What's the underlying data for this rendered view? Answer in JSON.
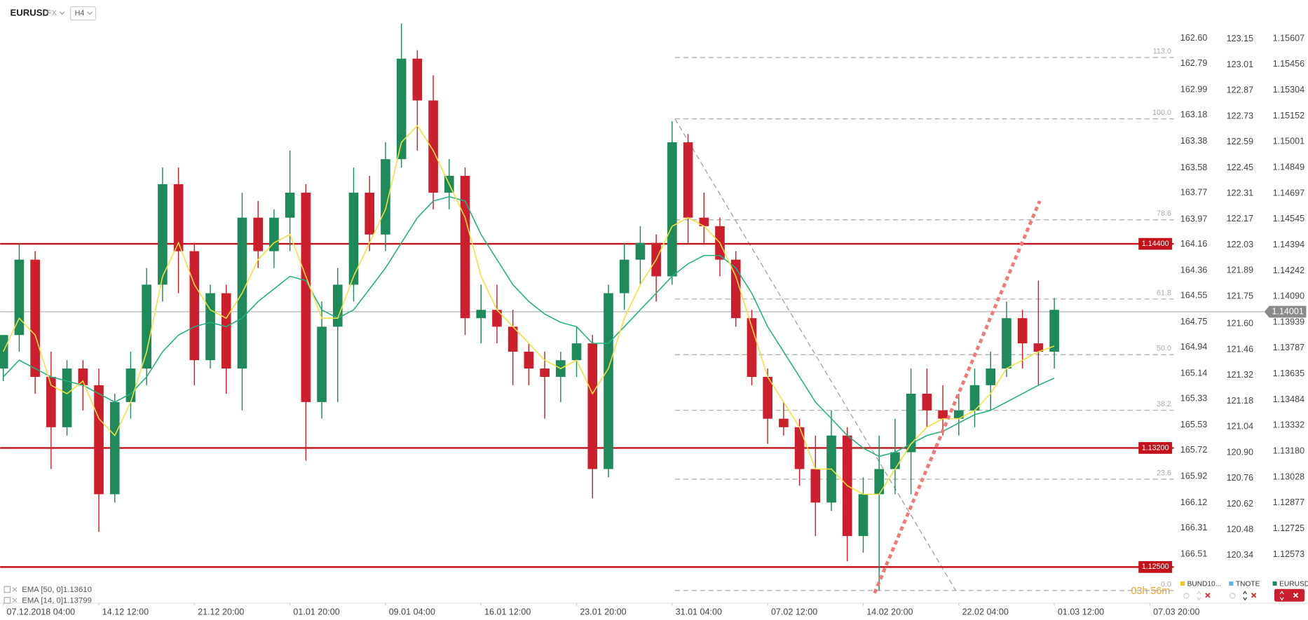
{
  "toolbar": {
    "symbol": "EURUSD",
    "market": "FX",
    "interval": "H4"
  },
  "chart_data": {
    "type": "candlestick",
    "xlim": [
      -0.2,
      73.5
    ],
    "xticks": [
      {
        "value": 0,
        "label": "07.12.2018 04:00"
      },
      {
        "value": 6,
        "label": "14.12 12:00"
      },
      {
        "value": 12,
        "label": "21.12 20:00"
      },
      {
        "value": 18,
        "label": "01.01 20:00"
      },
      {
        "value": 24,
        "label": "09.01 04:00"
      },
      {
        "value": 30,
        "label": "16.01 12:00"
      },
      {
        "value": 36,
        "label": "23.01 20:00"
      },
      {
        "value": 42,
        "label": "31.01 04:00"
      },
      {
        "value": 48,
        "label": "07.02 12:00"
      },
      {
        "value": 54,
        "label": "14.02 20:00"
      },
      {
        "value": 60,
        "label": "22.02 04:00"
      },
      {
        "value": 66,
        "label": "01.03 12:00"
      },
      {
        "value": 72,
        "label": "07.03 20:00"
      }
    ],
    "ylim": [
      1.12287,
      1.15755
    ],
    "yticks": [
      1.15607,
      1.15456,
      1.15304,
      1.15152,
      1.15001,
      1.14849,
      1.14697,
      1.14545,
      1.14394,
      1.14242,
      {
        "value": 1.1409,
        "label": "1.14090"
      },
      1.13939,
      1.13787,
      1.13635,
      1.13484,
      1.13332,
      {
        "value": 1.1318,
        "label": "1.13180"
      },
      1.13028,
      1.12877,
      1.12725,
      1.12573
    ],
    "y2lim": [
      166.88,
      162.41
    ],
    "y2ticks": [
      {
        "value": 162.6,
        "label": "162.60"
      },
      162.79,
      162.99,
      163.18,
      163.38,
      163.58,
      163.77,
      163.97,
      164.16,
      164.36,
      164.55,
      164.75,
      164.94,
      165.14,
      165.33,
      165.53,
      165.72,
      165.92,
      166.12,
      166.31,
      166.51
    ],
    "y3lim": [
      120.08,
      123.29
    ],
    "y3ticks": [
      123.15,
      123.01,
      122.87,
      122.73,
      122.59,
      122.45,
      122.31,
      122.17,
      122.03,
      121.89,
      121.75,
      {
        "value": 121.6,
        "label": "121.60"
      },
      121.46,
      121.32,
      121.18,
      121.04,
      {
        "value": 120.9,
        "label": "120.90"
      },
      120.76,
      120.62,
      120.48,
      120.34
    ],
    "up_color": "#1e8a5c",
    "down_color": "#cc1f2d",
    "open": [
      1.13667,
      1.13864,
      1.14307,
      1.13618,
      1.13322,
      1.13667,
      1.13569,
      1.12928,
      1.1347,
      1.13667,
      1.1416,
      1.14751,
      1.14357,
      1.13716,
      1.1411,
      1.13667,
      1.14554,
      1.14357,
      1.14554,
      1.14701,
      1.1347,
      1.13913,
      1.1416,
      1.14701,
      1.14455,
      1.14898,
      1.15489,
      1.15243,
      1.14701,
      1.148,
      1.13963,
      1.14012,
      1.13913,
      1.13766,
      1.13667,
      1.13618,
      1.13716,
      1.13815,
      1.13076,
      1.1411,
      1.14307,
      1.14406,
      1.14209,
      1.14997,
      1.14554,
      1.14504,
      1.14307,
      1.13963,
      1.13618,
      1.13372,
      1.13322,
      1.13076,
      1.12879,
      1.13273,
      1.12682,
      1.12928,
      1.13076,
      1.13175,
      1.13519,
      1.13421,
      1.13372,
      1.13421,
      1.13569,
      1.13667,
      1.13963,
      1.13815,
      1.13766
    ],
    "high": [
      1.13864,
      1.14406,
      1.14357,
      1.13766,
      1.13716,
      1.13716,
      1.13667,
      1.13519,
      1.13766,
      1.14258,
      1.14849,
      1.14849,
      1.14406,
      1.1416,
      1.1416,
      1.14701,
      1.14652,
      1.14603,
      1.14948,
      1.14751,
      1.14061,
      1.14258,
      1.14849,
      1.148,
      1.14997,
      1.15696,
      1.15539,
      1.15391,
      1.14898,
      1.14849,
      1.1416,
      1.1416,
      1.14012,
      1.13815,
      1.13766,
      1.13766,
      1.13913,
      1.13864,
      1.1416,
      1.14406,
      1.14504,
      1.14455,
      1.1512,
      1.15046,
      1.14701,
      1.14554,
      1.14357,
      1.14012,
      1.13667,
      1.1347,
      1.13372,
      1.13273,
      1.13421,
      1.13322,
      1.13027,
      1.13273,
      1.13372,
      1.13667,
      1.13667,
      1.13569,
      1.13519,
      1.13667,
      1.13766,
      1.14061,
      1.14012,
      1.14184,
      1.14081
    ],
    "low": [
      1.13593,
      1.13766,
      1.13519,
      1.13076,
      1.13273,
      1.13421,
      1.12707,
      1.12879,
      1.13372,
      1.13569,
      1.14061,
      1.1411,
      1.13569,
      1.13667,
      1.13519,
      1.13421,
      1.14258,
      1.14258,
      1.14357,
      1.13125,
      1.13372,
      1.1347,
      1.14061,
      1.14357,
      1.14357,
      1.14849,
      1.14948,
      1.14603,
      1.14603,
      1.13864,
      1.13815,
      1.13815,
      1.13569,
      1.13569,
      1.13372,
      1.1347,
      1.13618,
      1.12904,
      1.13027,
      1.14012,
      1.1416,
      1.14061,
      1.1416,
      1.14406,
      1.14406,
      1.14209,
      1.13913,
      1.13569,
      1.13224,
      1.13273,
      1.12978,
      1.12682,
      1.1283,
      1.12534,
      1.12584,
      1.12362,
      1.12928,
      1.12928,
      1.13322,
      1.13273,
      1.13273,
      1.13322,
      1.13421,
      1.13618,
      1.13667,
      1.13569,
      1.13667
    ],
    "close": [
      1.13864,
      1.14307,
      1.13618,
      1.13322,
      1.13667,
      1.13569,
      1.12928,
      1.1347,
      1.13667,
      1.1416,
      1.14751,
      1.14357,
      1.13716,
      1.1411,
      1.13667,
      1.14554,
      1.14357,
      1.14554,
      1.14701,
      1.1347,
      1.13913,
      1.1416,
      1.14701,
      1.14455,
      1.14898,
      1.15489,
      1.15243,
      1.14701,
      1.148,
      1.13963,
      1.14012,
      1.13913,
      1.13766,
      1.13667,
      1.13618,
      1.13716,
      1.13815,
      1.13076,
      1.1411,
      1.14307,
      1.14406,
      1.14209,
      1.14997,
      1.14554,
      1.14504,
      1.14307,
      1.13963,
      1.13618,
      1.13372,
      1.13322,
      1.13076,
      1.12879,
      1.13273,
      1.12682,
      1.12928,
      1.13076,
      1.13175,
      1.13519,
      1.13421,
      1.13372,
      1.13421,
      1.13569,
      1.13667,
      1.13963,
      1.13815,
      1.13766,
      1.14012
    ],
    "series": [
      {
        "name": "EMA [50, 0]",
        "color": "#22b07f",
        "last_label": "1.13610",
        "values": [
          1.13618,
          1.13716,
          1.13667,
          1.13618,
          1.13593,
          1.13569,
          1.13519,
          1.1347,
          1.13519,
          1.13618,
          1.13766,
          1.13864,
          1.13913,
          1.13938,
          1.13913,
          1.13963,
          1.14061,
          1.14135,
          1.14209,
          1.14184,
          1.14012,
          1.13963,
          1.14012,
          1.14135,
          1.14258,
          1.14406,
          1.14554,
          1.14652,
          1.14677,
          1.14652,
          1.14455,
          1.14307,
          1.1416,
          1.14061,
          1.13987,
          1.13938,
          1.13913,
          1.13815,
          1.13815,
          1.13913,
          1.14012,
          1.1411,
          1.14209,
          1.14283,
          1.14332,
          1.14332,
          1.14258,
          1.1411,
          1.13913,
          1.13766,
          1.13618,
          1.1347,
          1.13372,
          1.13273,
          1.13199,
          1.1315,
          1.13175,
          1.13224,
          1.13273,
          1.13298,
          1.13347,
          1.13396,
          1.13421,
          1.1347,
          1.13519,
          1.13569,
          1.1361
        ]
      },
      {
        "name": "EMA [14, 0]",
        "color": "#f3e03c",
        "last_label": "1.13799",
        "values": [
          1.13766,
          1.13963,
          1.13864,
          1.13569,
          1.13519,
          1.13593,
          1.13372,
          1.13273,
          1.1347,
          1.13766,
          1.14209,
          1.14406,
          1.1416,
          1.14012,
          1.13963,
          1.1411,
          1.14307,
          1.14406,
          1.14455,
          1.14209,
          1.13963,
          1.13963,
          1.14209,
          1.14406,
          1.14603,
          1.14997,
          1.15095,
          1.14948,
          1.14751,
          1.14554,
          1.14209,
          1.14012,
          1.13913,
          1.13815,
          1.13716,
          1.13667,
          1.13716,
          1.13519,
          1.13667,
          1.13963,
          1.1416,
          1.14307,
          1.14504,
          1.14554,
          1.14504,
          1.14406,
          1.14209,
          1.13913,
          1.13618,
          1.1347,
          1.13322,
          1.13076,
          1.13076,
          1.12978,
          1.12928,
          1.12928,
          1.13076,
          1.13224,
          1.13322,
          1.13372,
          1.13372,
          1.13421,
          1.13519,
          1.13667,
          1.13716,
          1.13766,
          1.13799
        ]
      }
    ],
    "levels": [
      {
        "value": 1.144,
        "label": "1.14400"
      },
      {
        "value": 1.132,
        "label": "1.13200"
      },
      {
        "value": 1.125,
        "label": "1.12500"
      }
    ],
    "level_color": "#c4121a",
    "current": {
      "value": 1.14001,
      "label": "1.14001"
    },
    "fibonacci": {
      "from": [
        42.18,
        1.15135
      ],
      "to": [
        59.81,
        1.12362
      ],
      "levels": [
        {
          "value": 113,
          "label": "113.0"
        },
        {
          "value": 100,
          "label": "100.0"
        },
        {
          "value": 78.6,
          "label": "78.6"
        },
        {
          "value": 61.8,
          "label": "61.8"
        },
        {
          "value": 50,
          "label": "50.0"
        },
        {
          "value": 38.2,
          "label": "38.2"
        },
        {
          "value": 23.6,
          "label": "23.6"
        },
        {
          "value": 0,
          "label": "0.0"
        }
      ]
    },
    "trendlines": [
      {
        "color": "#f07a7a",
        "from": [
          54.71,
          1.12347
        ],
        "to": [
          65.08,
          1.14652
        ]
      }
    ],
    "instruments": [
      {
        "name": "BUND10...",
        "color": "#f5c518"
      },
      {
        "name": "TNOTE",
        "color": "#5bb5ee"
      },
      {
        "name": "EURUSD",
        "color": "#1e8a5c"
      }
    ],
    "countdown": "03h 56m"
  }
}
